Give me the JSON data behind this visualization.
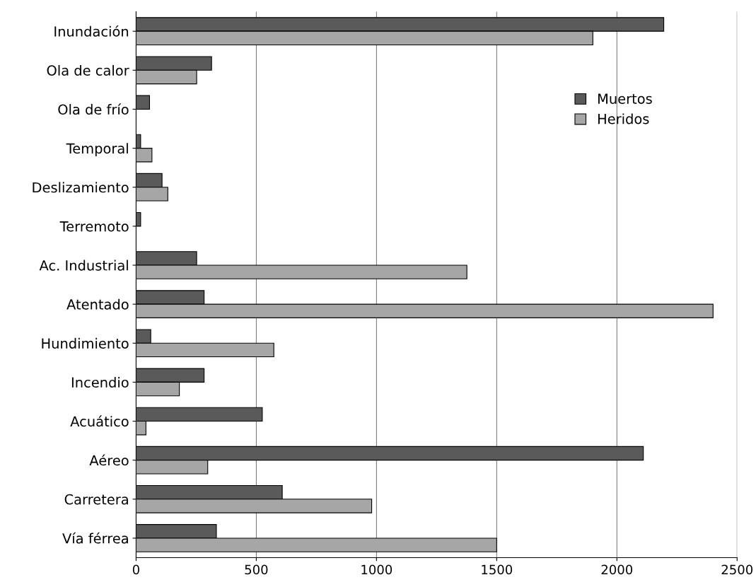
{
  "chart_data": {
    "type": "bar",
    "orientation": "horizontal",
    "categories": [
      "Inundación",
      "Ola de calor",
      "Ola de frío",
      "Temporal",
      "Deslizamiento",
      "Terremoto",
      "Ac. Industrial",
      "Atentado",
      "Hundimiento",
      "Incendio",
      "Acuático",
      "Aéreo",
      "Carretera",
      "Vía férrea"
    ],
    "series": [
      {
        "name": "Muertos",
        "color": "#5a5a5a",
        "values": [
          2195,
          314,
          56,
          19,
          108,
          19,
          252,
          283,
          61,
          283,
          525,
          2110,
          608,
          334
        ]
      },
      {
        "name": "Heridos",
        "color": "#a6a6a6",
        "values": [
          1900,
          252,
          null,
          66,
          132,
          null,
          1376,
          2400,
          573,
          180,
          41,
          298,
          980,
          1500
        ]
      }
    ],
    "xlim": [
      0,
      2500
    ],
    "xticks": [
      0,
      500,
      1000,
      1500,
      2000,
      2500
    ],
    "grid": "x",
    "legend": "right"
  }
}
